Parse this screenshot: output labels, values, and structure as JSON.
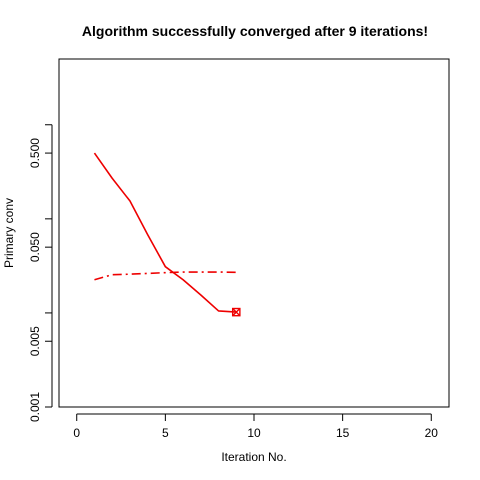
{
  "chart_data": {
    "type": "line",
    "title": "Algorithm successfully converged after 9 iterations!",
    "xlabel": "Iteration No.",
    "ylabel": "Primary conv",
    "xlim": [
      -1,
      21
    ],
    "ylim": [
      0.001,
      5
    ],
    "y_scale": "log",
    "grid": false,
    "legend": "none",
    "x_ticks": [
      0,
      5,
      10,
      15,
      20
    ],
    "x_tick_labels": [
      "0",
      "5",
      "10",
      "15",
      "20"
    ],
    "y_ticks": [
      0.001,
      0.005,
      0.05,
      0.5
    ],
    "y_tick_labels": [
      "0.001",
      "0.005",
      "0.050",
      "0.500"
    ],
    "y_minor_ticks": [
      0.01,
      0.1,
      1
    ],
    "series": [
      {
        "line_style": "solid",
        "color": "#ee0000",
        "x": [
          1,
          2,
          3,
          4,
          5,
          6,
          7,
          8,
          9
        ],
        "y": [
          0.5,
          0.27,
          0.155,
          0.068,
          0.031,
          0.0225,
          0.0155,
          0.0105,
          0.0102
        ]
      },
      {
        "line_style": "dashdot",
        "color": "#ee0000",
        "x": [
          1,
          2,
          3,
          4,
          5,
          6,
          7,
          8,
          9
        ],
        "y": [
          0.0225,
          0.0255,
          0.0258,
          0.0263,
          0.0268,
          0.0272,
          0.0272,
          0.0272,
          0.027
        ]
      }
    ],
    "end_marker": {
      "x": 9,
      "y": 0.0102,
      "symbol": "boxed-x",
      "color": "#ee0000"
    }
  }
}
